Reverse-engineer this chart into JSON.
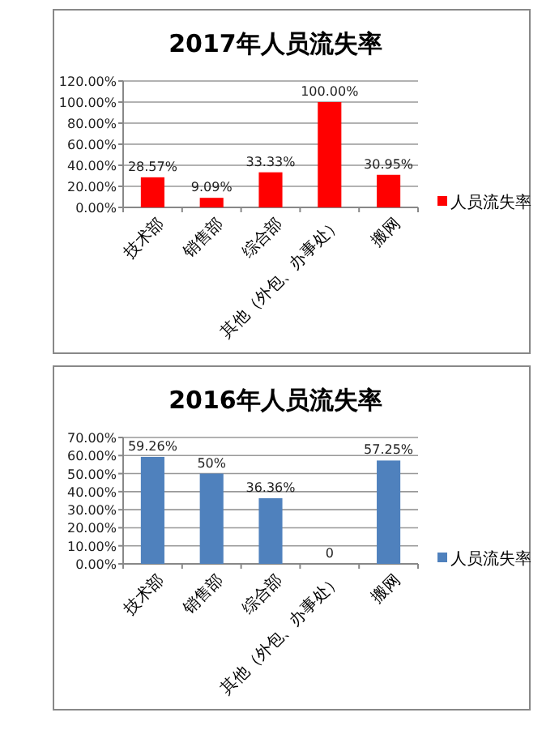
{
  "chart_data": [
    {
      "type": "bar",
      "title": "2017年人员流失率",
      "categories": [
        "技术部",
        "销售部",
        "综合部",
        "其他（外包、办事处）",
        "搬网"
      ],
      "series": [
        {
          "name": "人员流失率",
          "color": "#ff0000",
          "values": [
            28.57,
            9.09,
            33.33,
            100,
            30.95
          ],
          "value_labels": [
            "28.57%",
            "9.09%",
            "33.33%",
            "100.00%",
            "30.95%"
          ]
        }
      ],
      "ylim": [
        0,
        120
      ],
      "yticks": [
        {
          "value": 0,
          "label": "0.00%"
        },
        {
          "value": 20,
          "label": "20.00%"
        },
        {
          "value": 40,
          "label": "40.00%"
        },
        {
          "value": 60,
          "label": "60.00%"
        },
        {
          "value": 80,
          "label": "80.00%"
        },
        {
          "value": 100,
          "label": "100.00%"
        },
        {
          "value": 120,
          "label": "120.00%"
        }
      ],
      "grid": "y",
      "legend": "right"
    },
    {
      "type": "bar",
      "title": "2016年人员流失率",
      "categories": [
        "技术部",
        "销售部",
        "综合部",
        "其他（外包、办事处）",
        "搬网"
      ],
      "series": [
        {
          "name": "人员流失率",
          "color": "#4f81bd",
          "values": [
            59.26,
            50,
            36.36,
            0,
            57.25
          ],
          "value_labels": [
            "59.26%",
            "50%",
            "36.36%",
            "0",
            "57.25%"
          ]
        }
      ],
      "ylim": [
        0,
        70
      ],
      "yticks": [
        {
          "value": 0,
          "label": "0.00%"
        },
        {
          "value": 10,
          "label": "10.00%"
        },
        {
          "value": 20,
          "label": "20.00%"
        },
        {
          "value": 30,
          "label": "30.00%"
        },
        {
          "value": 40,
          "label": "40.00%"
        },
        {
          "value": 50,
          "label": "50.00%"
        },
        {
          "value": 60,
          "label": "60.00%"
        },
        {
          "value": 70,
          "label": "70.00%"
        }
      ],
      "grid": "y",
      "legend": "right"
    }
  ]
}
